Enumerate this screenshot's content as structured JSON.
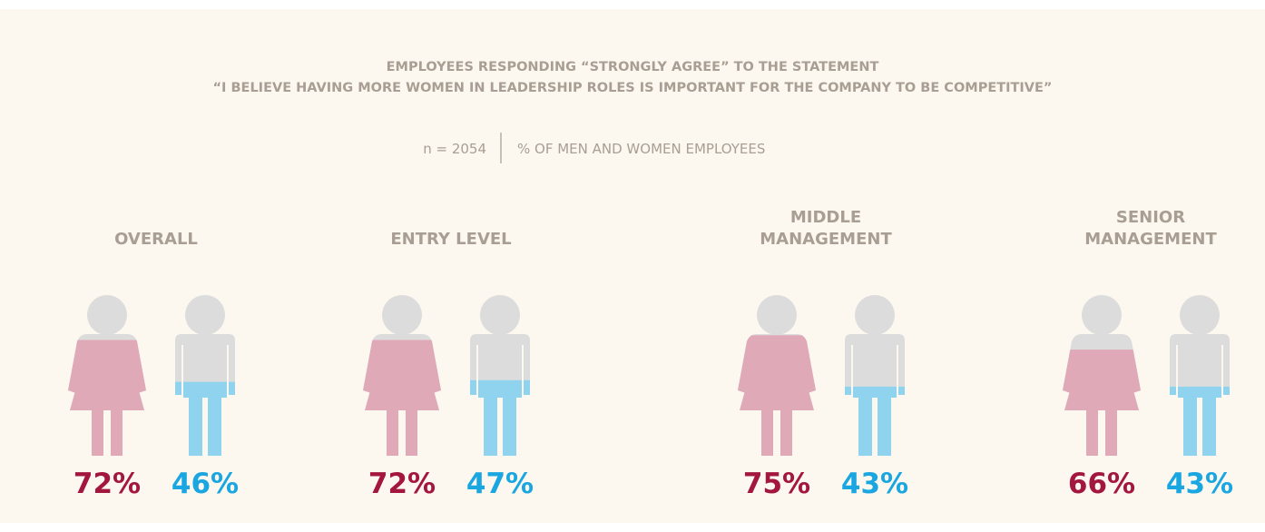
{
  "chart_data": {
    "type": "pictogram",
    "title": [
      "EMPLOYEES RESPONDING “STRONGLY AGREE” TO THE STATEMENT",
      "“I BELIEVE HAVING MORE WOMEN IN LEADERSHIP ROLES IS IMPORTANT FOR THE COMPANY TO BE COMPETITIVE”"
    ],
    "sample": "n = 2054",
    "subtitle": "% OF MEN AND WOMEN EMPLOYEES",
    "categories": [
      "OVERALL",
      "ENTRY LEVEL",
      "MIDDLE\nMANAGEMENT",
      "SENIOR\nMANAGEMENT"
    ],
    "ylim": [
      0,
      100
    ],
    "series": [
      {
        "figure": "woman",
        "color": "#e0a9b8",
        "label_color": "#a3173f",
        "values": [
          72,
          72,
          75,
          66
        ],
        "value_labels": [
          "72%",
          "72%",
          "75%",
          "66%"
        ]
      },
      {
        "figure": "man",
        "color": "#8fd3ee",
        "label_color": "#1aa6e0",
        "values": [
          46,
          47,
          43,
          43
        ],
        "value_labels": [
          "46%",
          "47%",
          "43%",
          "43%"
        ]
      }
    ]
  }
}
